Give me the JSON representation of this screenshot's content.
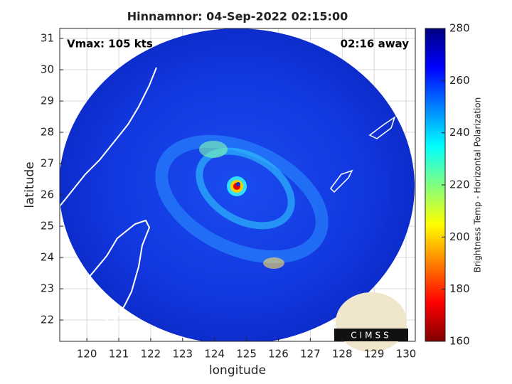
{
  "chart_data": {
    "type": "map",
    "title": "Hinnamnor: 04-Sep-2022 02:15:00",
    "annotations": [
      "Vmax: 105 kts",
      "02:16 away"
    ],
    "xlabel": "longitude",
    "ylabel": "latitude",
    "xlim": [
      119.15,
      130.29
    ],
    "ylim": [
      21.32,
      31.32
    ],
    "xticks": [
      120,
      121,
      122,
      123,
      124,
      125,
      126,
      127,
      128,
      129,
      130
    ],
    "yticks": [
      22,
      23,
      24,
      25,
      26,
      27,
      28,
      29,
      30,
      31
    ],
    "grid": true,
    "logo_text": "CIMSS",
    "colorbar": {
      "label": "Brightness Temp - Horizontal Polarization",
      "lim": [
        160,
        280
      ],
      "ticks": [
        160,
        180,
        200,
        220,
        240,
        260,
        280
      ],
      "colormap": [
        "#800000",
        "#ff0000",
        "#ff8000",
        "#ffff00",
        "#80ff80",
        "#00ffff",
        "#0080ff",
        "#0000ff",
        "#000080"
      ]
    }
  }
}
